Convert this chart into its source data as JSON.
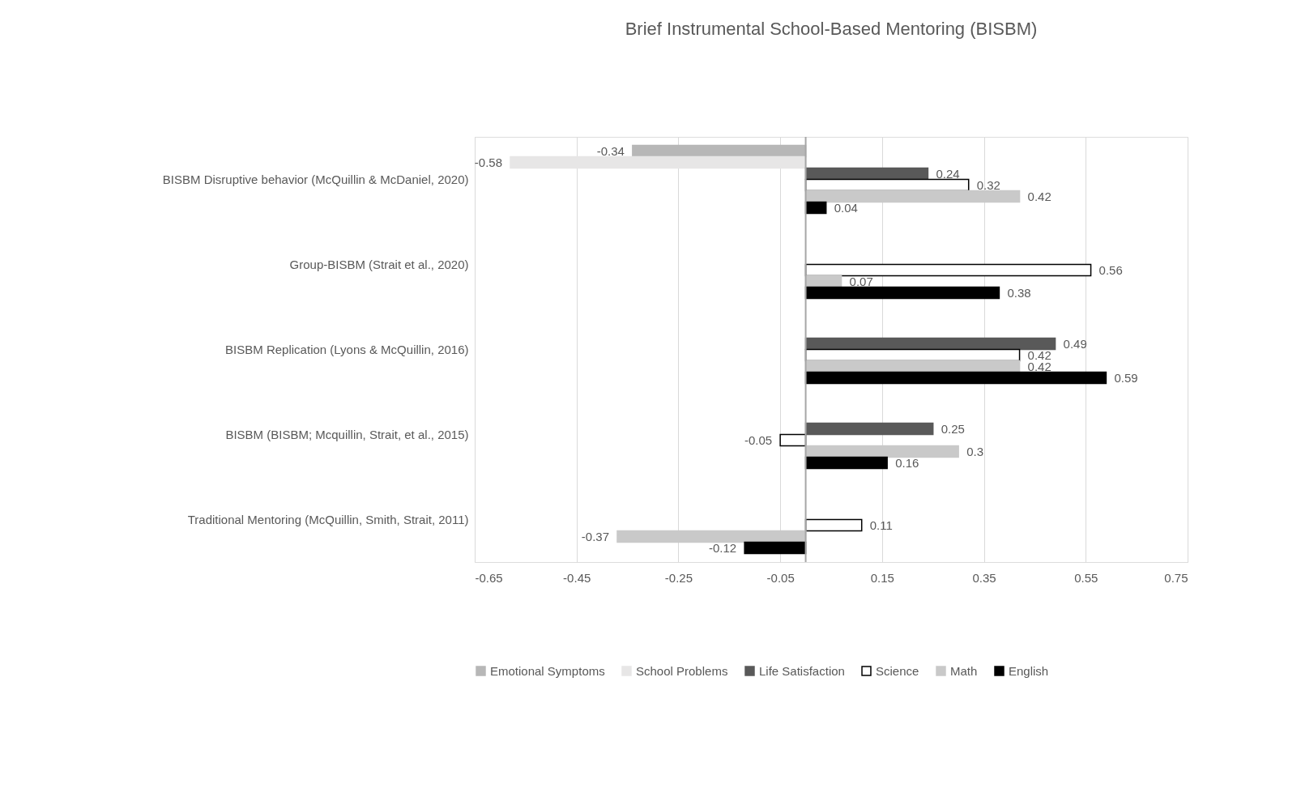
{
  "chart_data": {
    "type": "bar",
    "orientation": "horizontal",
    "title": "Brief Instrumental School-Based Mentoring (BISBM)",
    "categories": [
      "BISBM Disruptive behavior (McQuillin & McDaniel, 2020)",
      "Group-BISBM (Strait et al., 2020)",
      "BISBM Replication  (Lyons & McQuillin, 2016)",
      "BISBM  (BISBM; Mcquillin, Strait, et al., 2015)",
      "Traditional Mentoring (McQuillin, Smith, Strait, 2011)"
    ],
    "series": [
      {
        "name": "Emotional Symptoms",
        "color": "#b7b7b7",
        "values": [
          -0.34,
          null,
          null,
          null,
          null
        ]
      },
      {
        "name": "School Problems",
        "color": "#e7e6e6",
        "values": [
          -0.58,
          null,
          null,
          null,
          null
        ]
      },
      {
        "name": "Life Satisfaction",
        "color": "#595959",
        "values": [
          0.24,
          null,
          0.49,
          0.25,
          null
        ]
      },
      {
        "name": "Science",
        "color": "#ffffff",
        "values": [
          0.32,
          0.56,
          0.42,
          -0.05,
          0.11
        ]
      },
      {
        "name": "Math",
        "color": "#c9c9c9",
        "values": [
          0.42,
          0.07,
          0.42,
          0.3,
          -0.37
        ]
      },
      {
        "name": "English",
        "color": "#000000",
        "values": [
          0.04,
          0.38,
          0.59,
          0.16,
          -0.12
        ]
      }
    ],
    "xlim": [
      -0.65,
      0.75
    ],
    "xticks": [
      -0.65,
      -0.45,
      -0.25,
      -0.05,
      0.15,
      0.35,
      0.55,
      0.75
    ],
    "ref_lines": [
      {
        "axis": "x",
        "value": 0,
        "color": "#a6a6a6"
      }
    ],
    "grid": "x",
    "legend": "bottom",
    "data_labels": true
  }
}
